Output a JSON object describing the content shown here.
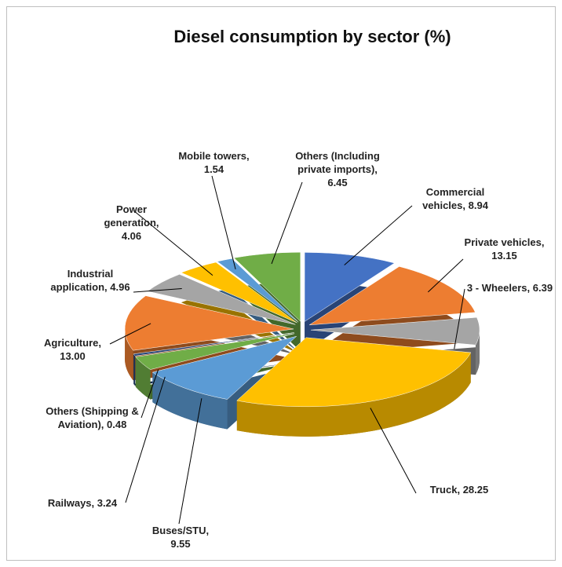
{
  "chart_data": {
    "type": "pie",
    "title": "Diesel consumption by sector  (%)",
    "categories": [
      "Commercial vehicles,",
      "Private vehicles,",
      "3 - Wheelers,",
      "Truck,",
      "Buses/STU,",
      "Railways,",
      "Others (Shipping & Aviation),",
      "Agriculture,",
      "Industrial application,",
      "Power generation,",
      "Mobile towers,",
      "Others (Including private imports),"
    ],
    "values": [
      8.94,
      13.15,
      6.39,
      28.25,
      9.55,
      3.24,
      0.48,
      13.0,
      4.96,
      4.06,
      1.54,
      6.45
    ],
    "value_labels": [
      "8.94",
      "13.15",
      "6.39",
      "28.25",
      "9.55",
      "3.24",
      "0.48",
      "13.00",
      "4.96",
      "4.06",
      "1.54",
      "6.45"
    ],
    "colors": [
      "#4472c4",
      "#ed7d31",
      "#a5a5a5",
      "#ffc000",
      "#5b9bd5",
      "#70ad47",
      "#264478",
      "#ed7d31",
      "#a5a5a5",
      "#ffc000",
      "#5b9bd5",
      "#70ad47"
    ]
  }
}
